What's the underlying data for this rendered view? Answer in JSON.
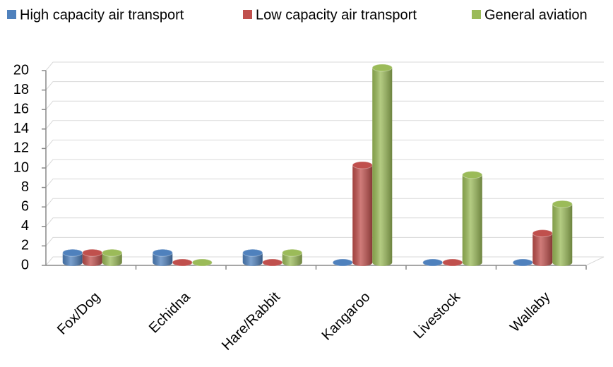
{
  "chart_data": {
    "type": "bar",
    "categories": [
      "Fox/Dog",
      "Echidna",
      "Hare/Rabbit",
      "Kangaroo",
      "Livestock",
      "Wallaby"
    ],
    "series": [
      {
        "name": "High capacity air transport",
        "color": "#4f81bd",
        "values": [
          1,
          1,
          1,
          0,
          0,
          0
        ]
      },
      {
        "name": "Low capacity air transport",
        "color": "#c0504d",
        "values": [
          1,
          0,
          0,
          10,
          0,
          3
        ]
      },
      {
        "name": "General aviation",
        "color": "#9bbb59",
        "values": [
          1,
          0,
          1,
          20,
          9,
          6
        ]
      }
    ],
    "ylim": [
      0,
      20
    ],
    "yticks": [
      0,
      2,
      4,
      6,
      8,
      10,
      12,
      14,
      16,
      18,
      20
    ],
    "grid": true,
    "legend": "top"
  }
}
